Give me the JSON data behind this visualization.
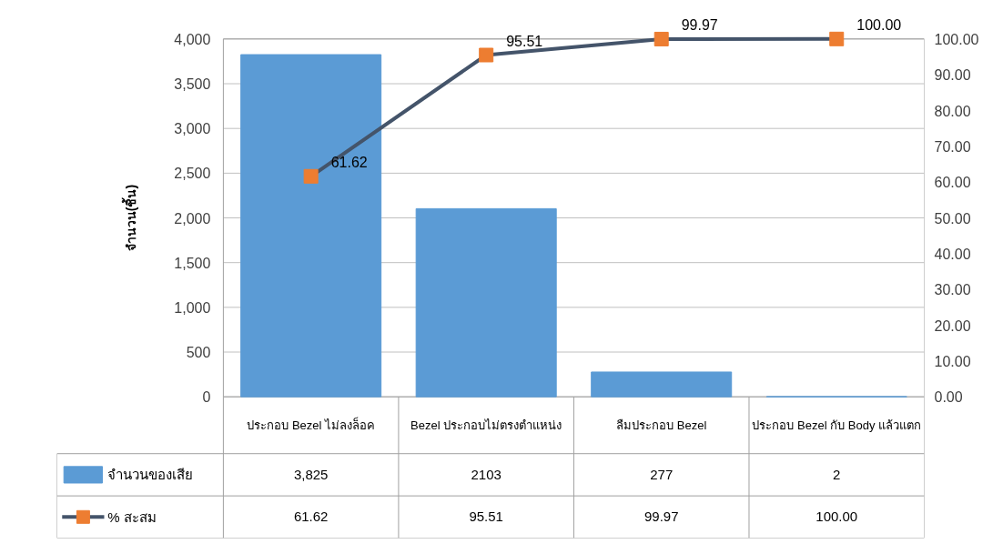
{
  "chart_data": {
    "type": "bar",
    "categories": [
      "ประกอบ Bezel ไม่ลงล็อค",
      "Bezel ประกอบไม่ตรงตำแหน่ง",
      "ลืมประกอบ Bezel",
      "ประกอบ Bezel กับ Body แล้วแตก"
    ],
    "ylabel": "จำนวน(ชิ้น)",
    "ylim": [
      0,
      4000
    ],
    "yticks": [
      {
        "value": 0,
        "label": "0"
      },
      {
        "value": 500,
        "label": "500"
      },
      {
        "value": 1000,
        "label": "1,000"
      },
      {
        "value": 1500,
        "label": "1,500"
      },
      {
        "value": 2000,
        "label": "2,000"
      },
      {
        "value": 2500,
        "label": "2,500"
      },
      {
        "value": 3000,
        "label": "3,000"
      },
      {
        "value": 3500,
        "label": "3,500"
      },
      {
        "value": 4000,
        "label": "4,000"
      }
    ],
    "y2lim": [
      0,
      100
    ],
    "y2ticks": [
      {
        "value": 0,
        "label": "0.00"
      },
      {
        "value": 10,
        "label": "10.00"
      },
      {
        "value": 20,
        "label": "20.00"
      },
      {
        "value": 30,
        "label": "30.00"
      },
      {
        "value": 40,
        "label": "40.00"
      },
      {
        "value": 50,
        "label": "50.00"
      },
      {
        "value": 60,
        "label": "60.00"
      },
      {
        "value": 70,
        "label": "70.00"
      },
      {
        "value": 80,
        "label": "80.00"
      },
      {
        "value": 90,
        "label": "90.00"
      },
      {
        "value": 100,
        "label": "100.00"
      }
    ],
    "series": [
      {
        "name": "จำนวนของเสีย",
        "color": "#5b9bd5",
        "values": [
          3825,
          2103,
          277,
          2
        ],
        "value_labels": [
          "3,825",
          "2103",
          "277",
          "2"
        ]
      },
      {
        "name": "% สะสม",
        "type": "line",
        "axis": "y2",
        "color": "#44546a",
        "colors": [
          "#ed7d31",
          "#ed7d31",
          "#ed7d31",
          "#ed7d31"
        ],
        "values": [
          61.62,
          95.51,
          99.97,
          100.0
        ],
        "value_labels": [
          "61.62",
          "95.51",
          "99.97",
          "100.00"
        ]
      }
    ],
    "grid": "y",
    "legend": "bottom",
    "marker": "square",
    "line_style": "solid"
  }
}
